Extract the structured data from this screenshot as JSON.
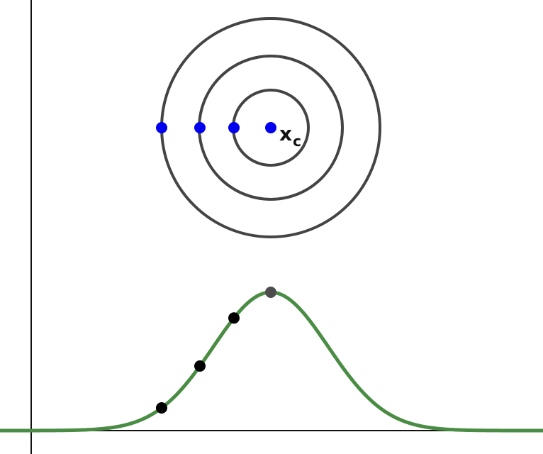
{
  "center_label": {
    "main": "x",
    "subscript": "c"
  },
  "colors": {
    "axes": "#111111",
    "circles": "#444444",
    "circle_points": "#0000ee",
    "curve": "#4a8c44",
    "curve_points": "#000000",
    "peak_point": "#4d4d4d"
  },
  "rings": [
    {
      "name": "inner-ring"
    },
    {
      "name": "middle-ring"
    },
    {
      "name": "outer-ring"
    }
  ],
  "gaussian": {
    "curve": "bell-curve",
    "peak_marker": "peak-point",
    "sample_markers": [
      "sample-point-inner",
      "sample-point-middle",
      "sample-point-outer"
    ]
  }
}
